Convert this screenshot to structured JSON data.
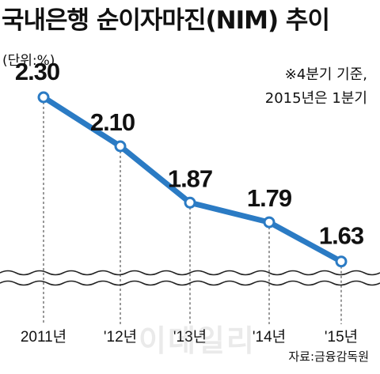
{
  "header": {
    "title": "국내은행 순이자마진(NIM) 추이",
    "unit": "(단위:%)",
    "note_line1": "※4분기 기준,",
    "note_line2": "2015년은 1분기"
  },
  "footer": {
    "source": "자료:금융감독원",
    "watermark": "이데일리"
  },
  "colors": {
    "line": "#2b7bc4",
    "marker_fill": "#ffffff",
    "guide": "#555555",
    "wave": "#222222"
  },
  "chart_data": {
    "type": "line",
    "categories": [
      "2011년",
      "'12년",
      "'13년",
      "'14년",
      "'15년"
    ],
    "values": [
      2.3,
      2.1,
      1.87,
      1.79,
      1.63
    ],
    "value_labels": [
      "2.30",
      "2.10",
      "1.87",
      "1.79",
      "1.63"
    ],
    "axis_break": true,
    "ylim": [
      1.4,
      2.4
    ],
    "grid": false,
    "legend": "none"
  }
}
